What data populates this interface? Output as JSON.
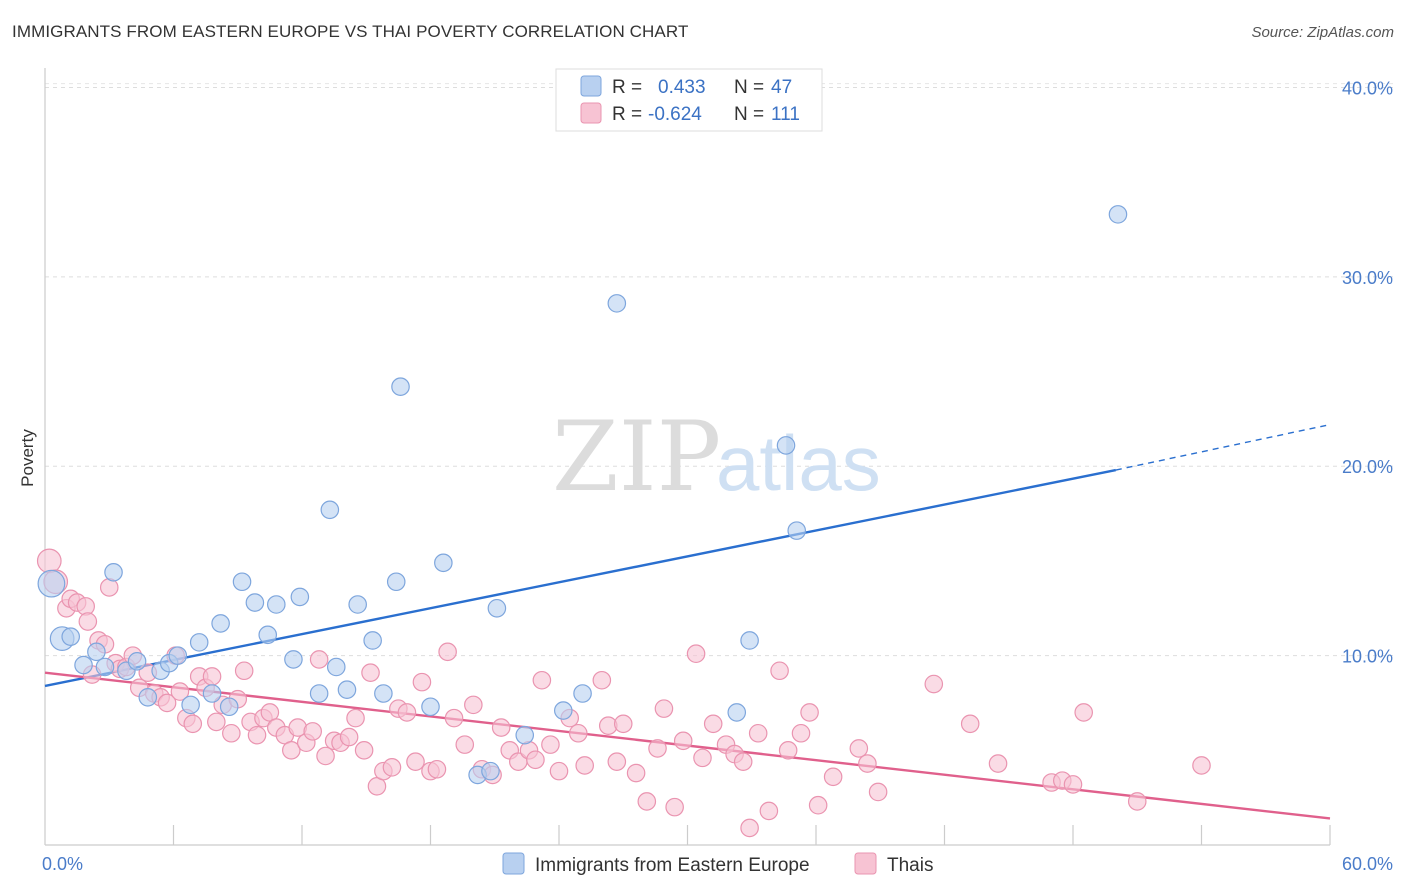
{
  "title": "IMMIGRANTS FROM EASTERN EUROPE VS THAI POVERTY CORRELATION CHART",
  "source": "Source: ZipAtlas.com",
  "watermark": {
    "zip": "ZIP",
    "atlas": "atlas"
  },
  "legend": {
    "r_label": "R =",
    "n_label": "N =",
    "series": [
      {
        "r": "0.433",
        "n": "47"
      },
      {
        "r": "-0.624",
        "n": "111"
      }
    ]
  },
  "bottom_legend": [
    "Immigrants from Eastern Europe",
    "Thais"
  ],
  "chart_data": {
    "type": "scatter",
    "title": "IMMIGRANTS FROM EASTERN EUROPE VS THAI POVERTY CORRELATION CHART",
    "xlabel": "",
    "ylabel": "Poverty",
    "xlim": [
      0,
      60
    ],
    "ylim": [
      0,
      40.5
    ],
    "x_ticks": [
      {
        "value": 0,
        "label": "0.0%"
      },
      {
        "value": 60,
        "label": "60.0%"
      }
    ],
    "y_ticks": [
      {
        "value": 10,
        "label": "10.0%"
      },
      {
        "value": 20,
        "label": "20.0%"
      },
      {
        "value": 30,
        "label": "30.0%"
      },
      {
        "value": 40,
        "label": "40.0%"
      }
    ],
    "grid": true,
    "legend_position": "top-center",
    "colors": {
      "blue_fill": "#b8d0f0",
      "blue_stroke": "#7ea6dd",
      "blue_line": "#2a6fcf",
      "pink_fill": "#f7c3d3",
      "pink_stroke": "#ea94b0",
      "pink_line": "#e0608c"
    },
    "series": [
      {
        "name": "Immigrants from Eastern Europe",
        "color": "#7ea6dd",
        "trend": {
          "x0": 0,
          "y0": 8.4,
          "x1": 50,
          "y1": 19.8,
          "dash_to_x": 60,
          "dash_to_y": 22.2
        },
        "points": [
          [
            0.3,
            13.8,
            16
          ],
          [
            0.8,
            10.9,
            14
          ],
          [
            1.2,
            11.0,
            10
          ],
          [
            1.8,
            9.5,
            10
          ],
          [
            2.4,
            10.2,
            10
          ],
          [
            2.8,
            9.4,
            10
          ],
          [
            3.2,
            14.4,
            10
          ],
          [
            3.8,
            9.2,
            10
          ],
          [
            4.3,
            9.7,
            10
          ],
          [
            4.8,
            7.8,
            10
          ],
          [
            5.4,
            9.2,
            10
          ],
          [
            5.8,
            9.6,
            10
          ],
          [
            6.2,
            10.0,
            10
          ],
          [
            6.8,
            7.4,
            10
          ],
          [
            7.2,
            10.7,
            10
          ],
          [
            7.8,
            8.0,
            10
          ],
          [
            8.2,
            11.7,
            10
          ],
          [
            8.6,
            7.3,
            10
          ],
          [
            9.2,
            13.9,
            10
          ],
          [
            9.8,
            12.8,
            10
          ],
          [
            10.4,
            11.1,
            10
          ],
          [
            10.8,
            12.7,
            10
          ],
          [
            11.6,
            9.8,
            10
          ],
          [
            11.9,
            13.1,
            10
          ],
          [
            12.8,
            8.0,
            10
          ],
          [
            13.3,
            17.7,
            10
          ],
          [
            13.6,
            9.4,
            10
          ],
          [
            14.1,
            8.2,
            10
          ],
          [
            14.6,
            12.7,
            10
          ],
          [
            15.8,
            8.0,
            10
          ],
          [
            15.3,
            10.8,
            10
          ],
          [
            16.4,
            13.9,
            10
          ],
          [
            16.6,
            24.2,
            10
          ],
          [
            18.0,
            7.3,
            10
          ],
          [
            18.6,
            14.9,
            10
          ],
          [
            20.2,
            3.7,
            10
          ],
          [
            20.8,
            3.9,
            10
          ],
          [
            21.1,
            12.5,
            10
          ],
          [
            22.4,
            5.8,
            10
          ],
          [
            24.2,
            7.1,
            10
          ],
          [
            25.1,
            8.0,
            10
          ],
          [
            26.7,
            28.6,
            10
          ],
          [
            32.3,
            7.0,
            10
          ],
          [
            32.9,
            10.8,
            10
          ],
          [
            34.6,
            21.1,
            10
          ],
          [
            35.1,
            16.6,
            10
          ],
          [
            50.1,
            33.3,
            10
          ]
        ]
      },
      {
        "name": "Thais",
        "color": "#ea94b0",
        "trend": {
          "x0": 0,
          "y0": 9.1,
          "x1": 60,
          "y1": 1.4
        },
        "points": [
          [
            0.2,
            15.0,
            14
          ],
          [
            0.5,
            13.9,
            14
          ],
          [
            1.0,
            12.5,
            10
          ],
          [
            1.2,
            13.0,
            10
          ],
          [
            1.5,
            12.8,
            10
          ],
          [
            1.9,
            12.6,
            10
          ],
          [
            2.0,
            11.8,
            10
          ],
          [
            2.2,
            9.0,
            10
          ],
          [
            2.5,
            10.8,
            10
          ],
          [
            2.8,
            10.6,
            10
          ],
          [
            3.0,
            13.6,
            10
          ],
          [
            3.3,
            9.6,
            10
          ],
          [
            3.5,
            9.3,
            10
          ],
          [
            3.8,
            9.4,
            10
          ],
          [
            4.1,
            10.0,
            10
          ],
          [
            4.4,
            8.3,
            10
          ],
          [
            4.8,
            9.1,
            10
          ],
          [
            5.1,
            8.0,
            10
          ],
          [
            5.4,
            7.8,
            10
          ],
          [
            5.7,
            7.5,
            10
          ],
          [
            6.1,
            10.0,
            10
          ],
          [
            6.3,
            8.1,
            10
          ],
          [
            6.6,
            6.7,
            10
          ],
          [
            6.9,
            6.4,
            10
          ],
          [
            7.2,
            8.9,
            10
          ],
          [
            7.5,
            8.3,
            10
          ],
          [
            7.8,
            8.9,
            10
          ],
          [
            8.0,
            6.5,
            10
          ],
          [
            8.3,
            7.4,
            10
          ],
          [
            8.7,
            5.9,
            10
          ],
          [
            9.0,
            7.7,
            10
          ],
          [
            9.3,
            9.2,
            10
          ],
          [
            9.6,
            6.5,
            10
          ],
          [
            9.9,
            5.8,
            10
          ],
          [
            10.2,
            6.7,
            10
          ],
          [
            10.5,
            7.0,
            10
          ],
          [
            10.8,
            6.2,
            10
          ],
          [
            11.2,
            5.8,
            10
          ],
          [
            11.5,
            5.0,
            10
          ],
          [
            11.8,
            6.2,
            10
          ],
          [
            12.2,
            5.4,
            10
          ],
          [
            12.5,
            6.0,
            10
          ],
          [
            12.8,
            9.8,
            10
          ],
          [
            13.1,
            4.7,
            10
          ],
          [
            13.5,
            5.5,
            10
          ],
          [
            13.8,
            5.4,
            10
          ],
          [
            14.2,
            5.7,
            10
          ],
          [
            14.5,
            6.7,
            10
          ],
          [
            14.9,
            5.0,
            10
          ],
          [
            15.2,
            9.1,
            10
          ],
          [
            15.5,
            3.1,
            10
          ],
          [
            15.8,
            3.9,
            10
          ],
          [
            16.2,
            4.1,
            10
          ],
          [
            16.5,
            7.2,
            10
          ],
          [
            16.9,
            7.0,
            10
          ],
          [
            17.3,
            4.4,
            10
          ],
          [
            17.6,
            8.6,
            10
          ],
          [
            18.0,
            3.9,
            10
          ],
          [
            18.3,
            4.0,
            10
          ],
          [
            18.8,
            10.2,
            10
          ],
          [
            19.1,
            6.7,
            10
          ],
          [
            19.6,
            5.3,
            10
          ],
          [
            20.0,
            7.4,
            10
          ],
          [
            20.4,
            4.0,
            10
          ],
          [
            20.9,
            3.7,
            10
          ],
          [
            21.3,
            6.2,
            10
          ],
          [
            21.7,
            5.0,
            10
          ],
          [
            22.1,
            4.4,
            10
          ],
          [
            22.6,
            5.0,
            10
          ],
          [
            22.9,
            4.5,
            10
          ],
          [
            23.2,
            8.7,
            10
          ],
          [
            23.6,
            5.3,
            10
          ],
          [
            24.0,
            3.9,
            10
          ],
          [
            24.5,
            6.7,
            10
          ],
          [
            24.9,
            5.9,
            10
          ],
          [
            25.2,
            4.2,
            10
          ],
          [
            26.0,
            8.7,
            10
          ],
          [
            26.3,
            6.3,
            10
          ],
          [
            26.7,
            4.4,
            10
          ],
          [
            27.0,
            6.4,
            10
          ],
          [
            27.6,
            3.8,
            10
          ],
          [
            28.1,
            2.3,
            10
          ],
          [
            28.6,
            5.1,
            10
          ],
          [
            28.9,
            7.2,
            10
          ],
          [
            29.4,
            2.0,
            10
          ],
          [
            29.8,
            5.5,
            10
          ],
          [
            30.4,
            10.1,
            10
          ],
          [
            30.7,
            4.6,
            10
          ],
          [
            31.2,
            6.4,
            10
          ],
          [
            31.8,
            5.3,
            10
          ],
          [
            32.2,
            4.8,
            10
          ],
          [
            32.6,
            4.4,
            10
          ],
          [
            32.9,
            0.9,
            10
          ],
          [
            33.3,
            5.9,
            10
          ],
          [
            33.8,
            1.8,
            10
          ],
          [
            34.3,
            9.2,
            10
          ],
          [
            34.7,
            5.0,
            10
          ],
          [
            35.3,
            5.9,
            10
          ],
          [
            35.7,
            7.0,
            10
          ],
          [
            36.1,
            2.1,
            10
          ],
          [
            36.8,
            3.6,
            10
          ],
          [
            38.0,
            5.1,
            10
          ],
          [
            38.4,
            4.3,
            10
          ],
          [
            38.9,
            2.8,
            10
          ],
          [
            41.5,
            8.5,
            10
          ],
          [
            43.2,
            6.4,
            10
          ],
          [
            44.5,
            4.3,
            10
          ],
          [
            47.0,
            3.3,
            10
          ],
          [
            47.5,
            3.4,
            10
          ],
          [
            48.0,
            3.2,
            10
          ],
          [
            48.5,
            7.0,
            10
          ],
          [
            51.0,
            2.3,
            10
          ],
          [
            54.0,
            4.2,
            10
          ]
        ]
      }
    ]
  }
}
